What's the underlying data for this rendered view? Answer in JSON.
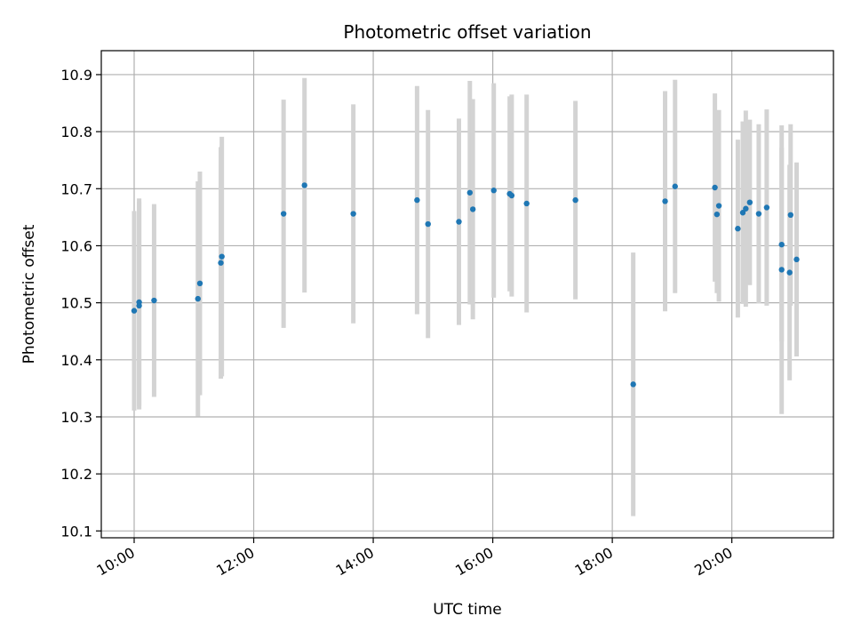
{
  "chart_data": {
    "type": "scatter",
    "title": "Photometric offset variation",
    "xlabel": "UTC time",
    "ylabel": "Photometric offset",
    "x_axis_kind": "time",
    "xlim": [
      "09:27",
      "21:42"
    ],
    "ylim": [
      10.088,
      10.942
    ],
    "x_ticks": [
      "10:00",
      "12:00",
      "14:00",
      "16:00",
      "18:00",
      "20:00"
    ],
    "y_ticks": [
      10.1,
      10.2,
      10.3,
      10.4,
      10.5,
      10.6,
      10.7,
      10.8,
      10.9
    ],
    "y_tick_labels": [
      "10.1",
      "10.2",
      "10.3",
      "10.4",
      "10.5",
      "10.6",
      "10.7",
      "10.8",
      "10.9"
    ],
    "grid": true,
    "series": [
      {
        "color": "#1f77b4",
        "error_color": "#d3d3d3",
        "points": [
          {
            "x": "10:00",
            "y": 10.486,
            "err": 0.175
          },
          {
            "x": "10:05",
            "y": 10.495,
            "err": 0.182
          },
          {
            "x": "10:05",
            "y": 10.501,
            "err": 0.182
          },
          {
            "x": "10:20",
            "y": 10.504,
            "err": 0.169
          },
          {
            "x": "11:04",
            "y": 10.507,
            "err": 0.206
          },
          {
            "x": "11:06",
            "y": 10.534,
            "err": 0.196
          },
          {
            "x": "11:27",
            "y": 10.57,
            "err": 0.203
          },
          {
            "x": "11:28",
            "y": 10.581,
            "err": 0.21
          },
          {
            "x": "12:30",
            "y": 10.656,
            "err": 0.2
          },
          {
            "x": "12:51",
            "y": 10.706,
            "err": 0.188
          },
          {
            "x": "13:40",
            "y": 10.656,
            "err": 0.192
          },
          {
            "x": "14:44",
            "y": 10.68,
            "err": 0.2
          },
          {
            "x": "14:55",
            "y": 10.638,
            "err": 0.2
          },
          {
            "x": "15:26",
            "y": 10.642,
            "err": 0.181
          },
          {
            "x": "15:37",
            "y": 10.693,
            "err": 0.196
          },
          {
            "x": "15:40",
            "y": 10.664,
            "err": 0.193
          },
          {
            "x": "16:01",
            "y": 10.697,
            "err": 0.188
          },
          {
            "x": "16:17",
            "y": 10.691,
            "err": 0.171
          },
          {
            "x": "16:19",
            "y": 10.688,
            "err": 0.177
          },
          {
            "x": "16:34",
            "y": 10.674,
            "err": 0.191
          },
          {
            "x": "17:23",
            "y": 10.68,
            "err": 0.174
          },
          {
            "x": "18:21",
            "y": 10.357,
            "err": 0.231
          },
          {
            "x": "18:53",
            "y": 10.678,
            "err": 0.193
          },
          {
            "x": "19:03",
            "y": 10.704,
            "err": 0.187
          },
          {
            "x": "19:43",
            "y": 10.702,
            "err": 0.165
          },
          {
            "x": "19:45",
            "y": 10.655,
            "err": 0.138
          },
          {
            "x": "19:47",
            "y": 10.67,
            "err": 0.168
          },
          {
            "x": "20:06",
            "y": 10.63,
            "err": 0.156
          },
          {
            "x": "20:11",
            "y": 10.658,
            "err": 0.16
          },
          {
            "x": "20:14",
            "y": 10.665,
            "err": 0.172
          },
          {
            "x": "20:18",
            "y": 10.676,
            "err": 0.145
          },
          {
            "x": "20:27",
            "y": 10.656,
            "err": 0.157
          },
          {
            "x": "20:35",
            "y": 10.667,
            "err": 0.172
          },
          {
            "x": "20:50",
            "y": 10.602,
            "err": 0.17
          },
          {
            "x": "20:50",
            "y": 10.558,
            "err": 0.253
          },
          {
            "x": "20:58",
            "y": 10.553,
            "err": 0.189
          },
          {
            "x": "20:59",
            "y": 10.654,
            "err": 0.159
          },
          {
            "x": "21:05",
            "y": 10.576,
            "err": 0.17
          }
        ]
      }
    ]
  }
}
